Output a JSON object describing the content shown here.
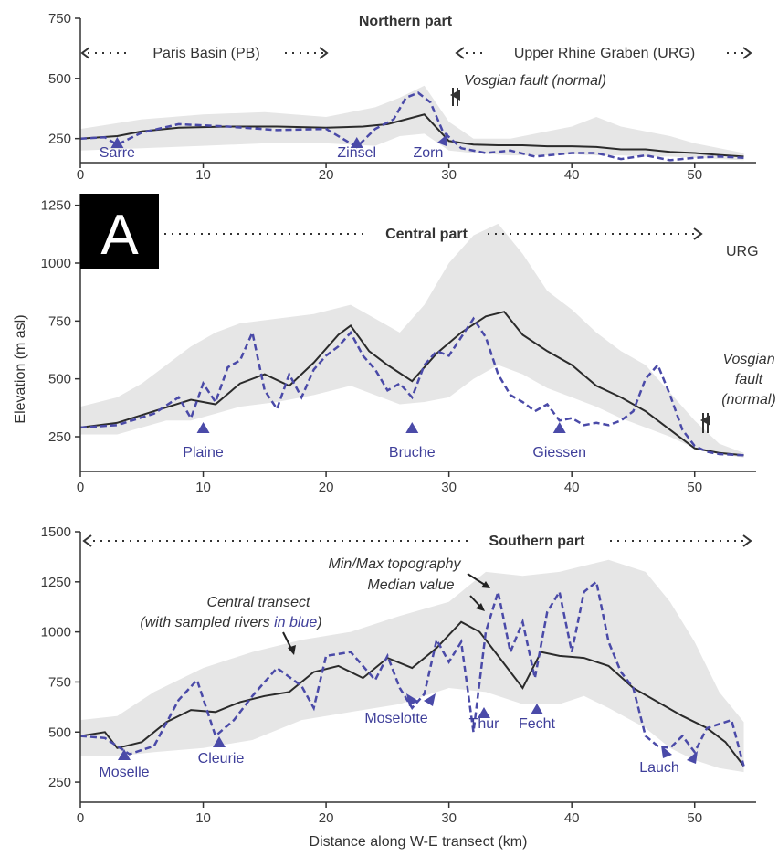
{
  "colors": {
    "band": "#e6e6e6",
    "median": "#2b2b2b",
    "river": "#4a4aa8",
    "river_label": "#3f3f9a",
    "text": "#333333",
    "badge_bg": "#000000",
    "badge_fg": "#ffffff"
  },
  "figure": {
    "badge": "A",
    "ylabel": "Elevation (m asl)",
    "xlabel": "Distance along W-E transect (km)"
  },
  "legend_text": {
    "minmax": "Min/Max topography",
    "median": "Median value",
    "transect_line1": "Central transect",
    "transect_line2_a": "(with sampled rivers ",
    "transect_line2_b": "in blue",
    "transect_line2_c": ")"
  },
  "chart_data": [
    {
      "type": "line",
      "title": "Northern part",
      "xlim": [
        0,
        55
      ],
      "ylim": [
        150,
        750
      ],
      "x_ticks": [
        "0",
        "10",
        "20",
        "30",
        "40",
        "50"
      ],
      "y_ticks": [
        "250",
        "500",
        "750"
      ],
      "segments": [
        {
          "label": "Paris Basin (PB)",
          "x_from": 0,
          "x_to": 20.5
        },
        {
          "label": "Upper Rhine Graben (URG)",
          "x_from": 31,
          "x_to": 55
        }
      ],
      "fault_label": "Vosgian fault (normal)",
      "fault_km": 30.5,
      "rivers": [
        {
          "name": "Sarre",
          "km": 3
        },
        {
          "name": "Zinsel",
          "km": 22.5
        },
        {
          "name": "Zorn",
          "km": 29.5
        }
      ],
      "series": [
        {
          "name": "Min/Max topography",
          "x": [
            0,
            5,
            10,
            15,
            20,
            24,
            26,
            28,
            30,
            32,
            35,
            38,
            40,
            42,
            44,
            46,
            48,
            50,
            54
          ],
          "min": [
            200,
            210,
            220,
            230,
            230,
            220,
            260,
            270,
            200,
            190,
            180,
            180,
            185,
            180,
            180,
            175,
            175,
            170,
            160
          ],
          "max": [
            290,
            330,
            350,
            360,
            340,
            380,
            420,
            470,
            320,
            250,
            250,
            280,
            300,
            340,
            300,
            280,
            260,
            230,
            190
          ]
        },
        {
          "name": "Median value",
          "x": [
            0,
            3,
            5,
            8,
            12,
            16,
            20,
            23,
            25,
            26.5,
            28,
            30,
            32,
            34,
            36,
            38,
            40,
            42,
            44,
            46,
            48,
            50,
            52,
            54
          ],
          "y": [
            250,
            260,
            280,
            295,
            300,
            300,
            295,
            300,
            310,
            330,
            350,
            240,
            225,
            222,
            222,
            218,
            218,
            215,
            205,
            205,
            195,
            190,
            182,
            175
          ]
        },
        {
          "name": "Central transect",
          "x": [
            0,
            2,
            3,
            5,
            8,
            12,
            16,
            20,
            21.5,
            22.5,
            24,
            25.5,
            26.5,
            27.5,
            28.5,
            29.5,
            31,
            33,
            35,
            37,
            40,
            42,
            44,
            46,
            48,
            50,
            52,
            54
          ],
          "y": [
            250,
            255,
            225,
            275,
            310,
            300,
            285,
            290,
            245,
            215,
            290,
            330,
            420,
            440,
            400,
            280,
            210,
            190,
            200,
            175,
            190,
            190,
            165,
            180,
            160,
            170,
            175,
            170
          ]
        }
      ]
    },
    {
      "type": "line",
      "title": "Central part",
      "xlim": [
        0,
        55
      ],
      "ylim": [
        100,
        1300
      ],
      "x_ticks": [
        "0",
        "10",
        "20",
        "30",
        "40",
        "50"
      ],
      "y_ticks": [
        "250",
        "500",
        "750",
        "1000",
        "1250"
      ],
      "side_label": "URG",
      "fault_label_lines": [
        "Vosgian",
        "fault",
        "(normal)"
      ],
      "fault_km": 51,
      "rivers": [
        {
          "name": "Plaine",
          "km": 10
        },
        {
          "name": "Bruche",
          "km": 27
        },
        {
          "name": "Giessen",
          "km": 39
        }
      ],
      "series": [
        {
          "name": "Min/Max topography",
          "x": [
            0,
            3,
            5,
            7,
            9,
            11,
            13,
            16,
            19,
            22,
            24,
            26,
            28,
            30,
            32,
            34,
            36,
            38,
            40,
            42,
            44,
            46,
            48,
            50,
            52,
            54
          ],
          "min": [
            260,
            260,
            290,
            320,
            320,
            350,
            380,
            400,
            430,
            470,
            430,
            390,
            400,
            420,
            500,
            560,
            520,
            460,
            420,
            380,
            330,
            290,
            250,
            200,
            175,
            160
          ],
          "max": [
            380,
            420,
            480,
            560,
            640,
            700,
            740,
            760,
            780,
            820,
            760,
            700,
            820,
            1000,
            1120,
            1170,
            1040,
            880,
            800,
            700,
            620,
            560,
            440,
            320,
            220,
            180
          ]
        },
        {
          "name": "Median value",
          "x": [
            0,
            3,
            6,
            9,
            11,
            13,
            15,
            17,
            19,
            21,
            22,
            23.5,
            25,
            27,
            29,
            31,
            33,
            34.5,
            36,
            38,
            40,
            42,
            44,
            46,
            48,
            50,
            52,
            54
          ],
          "y": [
            290,
            310,
            360,
            410,
            390,
            480,
            520,
            470,
            570,
            690,
            730,
            620,
            560,
            490,
            610,
            700,
            770,
            790,
            690,
            620,
            560,
            470,
            420,
            360,
            280,
            200,
            180,
            170
          ]
        },
        {
          "name": "Central transect",
          "x": [
            0,
            3,
            6,
            8,
            9,
            10,
            11,
            12,
            13,
            14,
            15,
            16,
            17,
            18,
            19,
            20,
            21,
            22,
            23,
            24,
            25,
            26,
            27,
            28,
            29,
            30,
            31,
            32,
            33,
            34,
            35,
            36,
            37,
            38,
            39,
            40,
            41,
            42,
            43,
            44,
            45,
            46,
            47,
            48,
            49,
            50,
            51,
            52,
            54
          ],
          "y": [
            290,
            300,
            350,
            420,
            330,
            480,
            400,
            550,
            580,
            700,
            450,
            370,
            520,
            420,
            540,
            600,
            640,
            700,
            600,
            540,
            450,
            480,
            420,
            560,
            620,
            600,
            680,
            760,
            680,
            520,
            430,
            400,
            360,
            390,
            320,
            330,
            300,
            310,
            300,
            320,
            360,
            500,
            560,
            430,
            280,
            210,
            185,
            175,
            170
          ]
        }
      ]
    },
    {
      "type": "line",
      "title": "Southern part",
      "xlim": [
        0,
        55
      ],
      "ylim": [
        150,
        1500
      ],
      "x_ticks": [
        "0",
        "10",
        "20",
        "30",
        "40",
        "50"
      ],
      "y_ticks": [
        "250",
        "500",
        "750",
        "1000",
        "1250",
        "1500"
      ],
      "rivers": [
        {
          "name": "Moselle",
          "km": 3.5
        },
        {
          "name": "Cleurie",
          "km": 11
        },
        {
          "name": "Moselotte",
          "km": 27
        },
        {
          "name": "Thur",
          "km": 32
        },
        {
          "name": "Fecht",
          "km": 37
        },
        {
          "name": "Lauch",
          "km": 48
        }
      ],
      "series": [
        {
          "name": "Min/Max topography",
          "x": [
            0,
            3,
            6,
            10,
            14,
            18,
            22,
            26,
            30,
            33,
            36,
            39,
            41,
            43,
            46,
            48,
            50,
            52,
            54
          ],
          "min": [
            380,
            380,
            400,
            420,
            460,
            560,
            600,
            640,
            720,
            700,
            640,
            640,
            680,
            620,
            520,
            420,
            360,
            320,
            300
          ],
          "max": [
            560,
            580,
            700,
            820,
            900,
            960,
            1000,
            1080,
            1150,
            1300,
            1280,
            1300,
            1330,
            1360,
            1300,
            1150,
            950,
            700,
            550
          ]
        },
        {
          "name": "Median value",
          "x": [
            0,
            2,
            3,
            5,
            7,
            9,
            11,
            13,
            15,
            17,
            19,
            21,
            23,
            25,
            27,
            29,
            31,
            32.5,
            34,
            36,
            37.5,
            39,
            41,
            43,
            45,
            47,
            49,
            51,
            52.5,
            54
          ],
          "y": [
            480,
            500,
            420,
            450,
            550,
            610,
            600,
            650,
            680,
            700,
            800,
            830,
            770,
            870,
            820,
            920,
            1050,
            1000,
            880,
            720,
            900,
            880,
            870,
            830,
            720,
            650,
            580,
            520,
            450,
            330
          ]
        },
        {
          "name": "Central transect",
          "x": [
            0,
            2,
            4,
            6,
            8,
            9.5,
            11,
            12.5,
            14,
            16,
            18,
            19,
            20,
            22,
            24,
            25,
            26,
            27,
            28,
            29,
            30,
            31,
            32,
            33,
            34,
            35,
            36,
            37,
            38,
            39,
            40,
            41,
            42,
            43,
            44,
            45,
            46,
            47,
            48,
            49,
            50,
            51,
            52,
            53,
            54
          ],
          "y": [
            480,
            470,
            390,
            430,
            660,
            760,
            480,
            560,
            680,
            820,
            730,
            620,
            880,
            900,
            760,
            880,
            720,
            620,
            690,
            960,
            850,
            950,
            500,
            1000,
            1200,
            900,
            1050,
            770,
            1100,
            1200,
            900,
            1200,
            1250,
            950,
            800,
            720,
            480,
            430,
            420,
            480,
            400,
            520,
            540,
            560,
            330
          ]
        }
      ]
    }
  ]
}
